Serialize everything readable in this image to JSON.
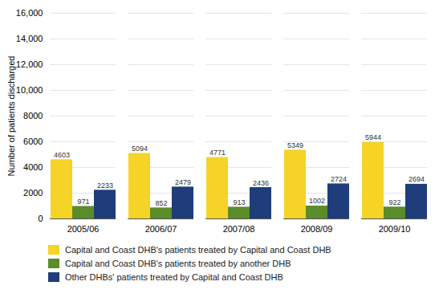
{
  "chart_data": {
    "type": "bar",
    "categories": [
      "2005/06",
      "2006/07",
      "2007/08",
      "2008/09",
      "2009/10"
    ],
    "series": [
      {
        "name": "Capital and Coast DHB's patients treated by Capital and Coast DHB",
        "color": "#F5D327",
        "values": [
          4603,
          5094,
          4771,
          5349,
          5944
        ]
      },
      {
        "name": "Capital and Coast DHB's patients treated by another DHB",
        "color": "#5B8C2A",
        "values": [
          971,
          852,
          913,
          1002,
          922
        ]
      },
      {
        "name": "Other DHBs' patients treated by Capital and Coast DHB",
        "color": "#1F3D7A",
        "values": [
          2233,
          2479,
          2436,
          2724,
          2694
        ]
      }
    ],
    "ylabel": "Number of patients discharged",
    "ylim": [
      0,
      16000
    ],
    "yticks": [
      0,
      2000,
      4000,
      6000,
      8000,
      {
        "value": 10000,
        "label": "10,000"
      },
      {
        "value": 12000,
        "label": "12,000"
      },
      {
        "value": 14000,
        "label": "14,000"
      },
      {
        "value": 16000,
        "label": "16,000"
      }
    ],
    "grid": true,
    "data_labels": true,
    "legend": "bottom"
  }
}
